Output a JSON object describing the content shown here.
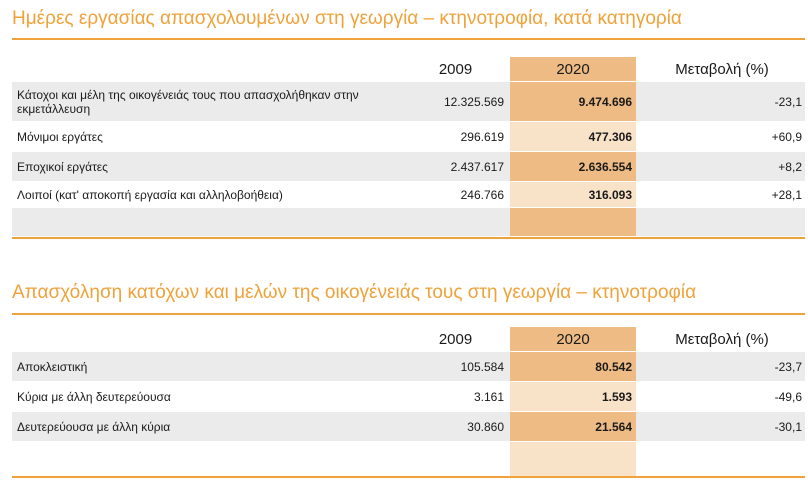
{
  "table1": {
    "title": "Ημέρες εργασίας απασχολουμένων στη γεωργία – κτηνοτροφία, κατά κατηγορία",
    "headers": {
      "y2009": "2009",
      "y2020": "2020",
      "change": "Μεταβολή (%)"
    },
    "rows": [
      {
        "label": "Κάτοχοι και μέλη της οικογένειάς τους που απασχολήθηκαν στην εκμετάλλευση",
        "v2009": "12.325.569",
        "v2020": "9.474.696",
        "change": "-23,1"
      },
      {
        "label": "Μόνιμοι εργάτες",
        "v2009": "296.619",
        "v2020": "477.306",
        "change": "+60,9"
      },
      {
        "label": "Εποχικοί εργάτες",
        "v2009": "2.437.617",
        "v2020": "2.636.554",
        "change": "+8,2"
      },
      {
        "label": "Λοιποί (κατ' αποκοπή εργασία και αλληλοβοήθεια)",
        "v2009": "246.766",
        "v2020": "316.093",
        "change": "+28,1"
      }
    ]
  },
  "table2": {
    "title": "Απασχόληση κατόχων και μελών της οικογένειάς τους στη γεωργία – κτηνοτροφία",
    "headers": {
      "y2009": "2009",
      "y2020": "2020",
      "change": "Μεταβολή (%)"
    },
    "rows": [
      {
        "label": "Αποκλειστική",
        "v2009": "105.584",
        "v2020": "80.542",
        "change": "-23,7"
      },
      {
        "label": "Κύρια με άλλη δευτερεύουσα",
        "v2009": "3.161",
        "v2020": "1.593",
        "change": "-49,6"
      },
      {
        "label": "Δευτερεύουσα με άλλη κύρια",
        "v2009": "30.860",
        "v2020": "21.564",
        "change": "-30,1"
      }
    ]
  },
  "colors": {
    "accent": "#f0a23a",
    "highlight_dark": "#eebb84",
    "highlight_light": "#f8e2c8",
    "row_shade": "#ebebeb"
  }
}
